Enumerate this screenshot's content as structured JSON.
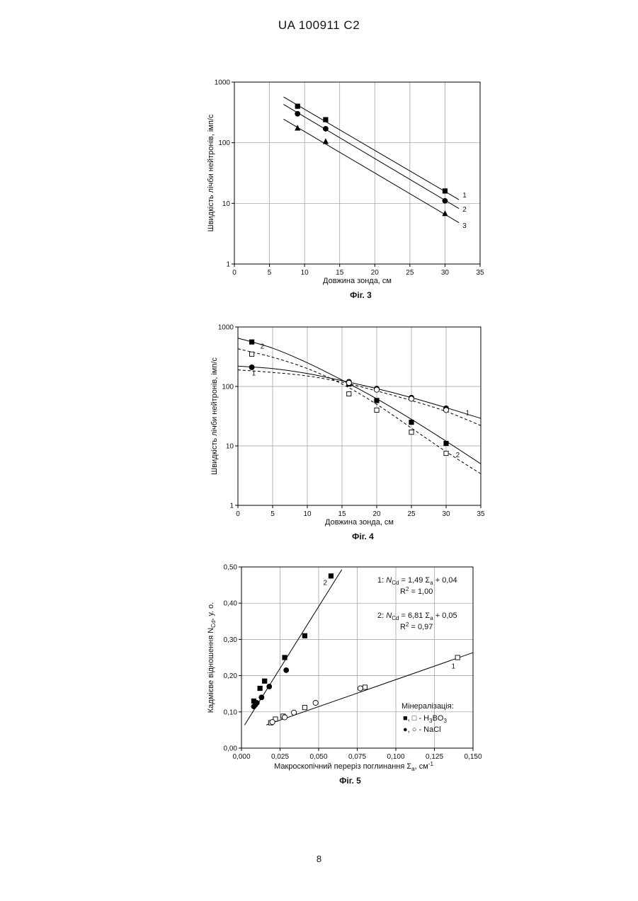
{
  "page": {
    "header": "UA   100911   C2",
    "number": "8"
  },
  "chart_data": [
    {
      "type": "scatter",
      "caption": "Фіг. 3",
      "xlabel": "Довжина зонда, см",
      "ylabel": "Швидкість лічби нейтронів, імп/с",
      "xlim": [
        0,
        35
      ],
      "ylim": [
        1,
        1000
      ],
      "yscale": "log",
      "xticks": [
        0,
        5,
        10,
        15,
        20,
        25,
        30,
        35
      ],
      "yticks": [
        1,
        10,
        100,
        1000
      ],
      "grid": true,
      "series": [
        {
          "name": "1",
          "marker": "square",
          "points": [
            [
              9,
              400
            ],
            [
              13,
              240
            ],
            [
              30,
              16
            ]
          ],
          "line": {
            "style": "solid",
            "x": [
              7,
              32
            ],
            "y": [
              570,
              11.5
            ]
          }
        },
        {
          "name": "2",
          "marker": "circle",
          "points": [
            [
              9,
              300
            ],
            [
              13,
              170
            ],
            [
              30,
              11
            ]
          ],
          "line": {
            "style": "solid",
            "x": [
              7,
              32
            ],
            "y": [
              430,
              8.2
            ]
          }
        },
        {
          "name": "3",
          "marker": "triangle",
          "points": [
            [
              9,
              175
            ],
            [
              13,
              105
            ],
            [
              30,
              6.8
            ]
          ],
          "line": {
            "style": "solid",
            "x": [
              7,
              32
            ],
            "y": [
              245,
              4.8
            ]
          }
        }
      ]
    },
    {
      "type": "scatter",
      "caption": "Фіг. 4",
      "xlabel": "Довжина зонда, см",
      "ylabel": "Швидкість лічби нейтронів, імп/с",
      "xlim": [
        0,
        35
      ],
      "ylim": [
        1,
        1000
      ],
      "yscale": "log",
      "xticks": [
        0,
        5,
        10,
        15,
        20,
        25,
        30,
        35
      ],
      "yticks": [
        1,
        10,
        100,
        1000
      ],
      "grid": true,
      "series": [
        {
          "name": "2",
          "marker": "square",
          "points": [
            [
              2,
              560
            ],
            [
              16,
              110
            ],
            [
              20,
              58
            ],
            [
              25,
              25
            ],
            [
              30,
              11
            ]
          ],
          "line": {
            "style": "solid",
            "x": [
              0,
              5,
              10,
              15,
              20,
              25,
              30,
              35
            ],
            "y": [
              650,
              440,
              250,
              128,
              62,
              28,
              12,
              5
            ]
          }
        },
        {
          "name": "2",
          "marker": "square-open",
          "points": [
            [
              2,
              350
            ],
            [
              16,
              75
            ],
            [
              20,
              40
            ],
            [
              25,
              17
            ],
            [
              30,
              7.5
            ]
          ],
          "line": {
            "style": "dashed",
            "x": [
              0,
              5,
              10,
              15,
              20,
              25,
              30,
              35
            ],
            "y": [
              430,
              310,
              200,
              110,
              50,
              20,
              8,
              3.4
            ]
          }
        },
        {
          "name": "1",
          "marker": "circle",
          "points": [
            [
              2,
              210
            ],
            [
              16,
              120
            ],
            [
              20,
              92
            ],
            [
              25,
              65
            ],
            [
              30,
              43
            ]
          ],
          "line": {
            "style": "solid",
            "x": [
              0,
              5,
              10,
              15,
              20,
              25,
              30,
              35
            ],
            "y": [
              220,
              200,
              165,
              125,
              92,
              65,
              44,
              29
            ]
          }
        },
        {
          "name": "1",
          "marker": "circle-open",
          "points": [
            [
              16,
              115
            ],
            [
              20,
              88
            ],
            [
              25,
              62
            ],
            [
              30,
              40
            ]
          ],
          "line": {
            "style": "dashed",
            "x": [
              0,
              5,
              10,
              15,
              20,
              25,
              30,
              35
            ],
            "y": [
              190,
              172,
              150,
              118,
              84,
              58,
              38,
              22
            ]
          }
        }
      ]
    },
    {
      "type": "scatter",
      "caption": "Фіг. 5",
      "xlabel_main": "Макроскопічний переріз поглинання Σ",
      "xlabel_sub": "a",
      "xlabel_unit": ", см",
      "xlabel_sup": "-1",
      "ylabel_main": "Кадмієве відношення N",
      "ylabel_sub": "Cd",
      "ylabel_unit": ", у. о.",
      "xlim": [
        0,
        0.15
      ],
      "ylim": [
        0,
        0.5
      ],
      "xticks": [
        0,
        0.025,
        0.05,
        0.075,
        0.1,
        0.125,
        0.15
      ],
      "xtick_labels": [
        "0,000",
        "0,025",
        "0,050",
        "0,075",
        "0,100",
        "0,125",
        "0,150"
      ],
      "yticks": [
        0,
        0.1,
        0.2,
        0.3,
        0.4,
        0.5
      ],
      "ytick_labels": [
        "0,00",
        "0,10",
        "0,20",
        "0,30",
        "0,40",
        "0,50"
      ],
      "grid": true,
      "equations": [
        {
          "prefix": "1: ",
          "n": "N",
          "nsub": "Cd",
          "mid": " = 1,49 Σ",
          "sigsub": "a",
          "tail": " + 0,04",
          "r2_main": "R",
          "r2_sup": "2",
          "r2_value": " = 1,00"
        },
        {
          "prefix": "2: ",
          "n": "N",
          "nsub": "Cd",
          "mid": " = 6,81 Σ",
          "sigsub": "a",
          "tail": " + 0,05",
          "r2_main": "R",
          "r2_sup": "2",
          "r2_value": " = 0,97"
        }
      ],
      "legend": {
        "title": "Мінералізація:",
        "entries": [
          {
            "text_main": "■, □ - H",
            "sub1": "3",
            "mid": "BO",
            "sub2": "3"
          },
          {
            "text_main": "●, ○ - NaCl"
          }
        ]
      },
      "line_labels": [
        {
          "label": "2",
          "x": 0.053,
          "y": 0.45
        },
        {
          "label": "1",
          "x": 0.136,
          "y": 0.22
        }
      ],
      "series": [
        {
          "name": "H3BO3 (2)",
          "marker": "square",
          "points": [
            [
              0.008,
              0.13
            ],
            [
              0.012,
              0.165
            ],
            [
              0.015,
              0.185
            ],
            [
              0.028,
              0.25
            ],
            [
              0.041,
              0.31
            ],
            [
              0.058,
              0.475
            ]
          ]
        },
        {
          "name": "NaCl (2)",
          "marker": "circle",
          "points": [
            [
              0.008,
              0.115
            ],
            [
              0.009,
              0.12
            ],
            [
              0.01,
              0.125
            ],
            [
              0.013,
              0.14
            ],
            [
              0.018,
              0.17
            ],
            [
              0.029,
              0.215
            ]
          ]
        },
        {
          "name": "H3BO3 (1)",
          "marker": "square-open",
          "points": [
            [
              0.019,
              0.07
            ],
            [
              0.022,
              0.08
            ],
            [
              0.027,
              0.088
            ],
            [
              0.041,
              0.112
            ],
            [
              0.08,
              0.168
            ],
            [
              0.14,
              0.25
            ]
          ]
        },
        {
          "name": "NaCl (1)",
          "marker": "circle-open",
          "points": [
            [
              0.02,
              0.072
            ],
            [
              0.028,
              0.085
            ],
            [
              0.034,
              0.098
            ],
            [
              0.048,
              0.125
            ],
            [
              0.077,
              0.165
            ]
          ]
        }
      ],
      "lines": [
        {
          "name": "2",
          "slope": 6.81,
          "intercept": 0.05,
          "x": [
            0.002,
            0.065
          ]
        },
        {
          "name": "1",
          "slope": 1.49,
          "intercept": 0.04,
          "x": [
            0.016,
            0.15
          ]
        }
      ]
    }
  ]
}
